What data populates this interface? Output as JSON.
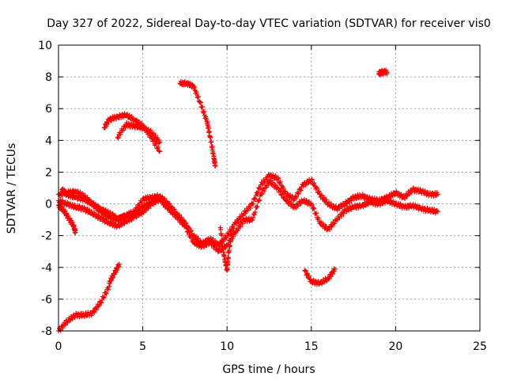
{
  "chart_data": {
    "type": "scatter",
    "title": "Day 327 of 2022, Sidereal Day-to-day VTEC variation (SDTVAR) for receiver vis0",
    "xlabel": "GPS time / hours",
    "ylabel": "SDTVAR / TECUs",
    "xlim": [
      0,
      25
    ],
    "ylim": [
      -8,
      10
    ],
    "xticks": [
      0,
      5,
      10,
      15,
      20,
      25
    ],
    "yticks": [
      -8,
      -6,
      -4,
      -2,
      0,
      2,
      4,
      6,
      8,
      10
    ],
    "grid": true,
    "marker": "+",
    "color": "#ff0000",
    "series": [
      {
        "x": [
          0.0,
          0.5,
          1.0,
          1.5,
          2.0,
          2.5,
          3.0,
          3.5,
          4.0,
          4.5,
          5.0,
          5.5,
          6.0,
          6.5,
          7.0,
          7.5,
          8.0,
          8.5,
          9.0,
          9.5,
          10.0,
          10.5,
          11.0,
          11.5,
          12.0,
          12.5,
          13.0,
          13.5,
          14.0,
          14.5,
          15.0,
          15.5,
          16.0,
          16.5,
          17.0,
          17.5,
          18.0,
          18.5,
          19.0,
          19.5,
          20.0,
          20.5,
          21.0,
          21.5,
          22.0,
          22.5
        ],
        "y": [
          0.6,
          0.7,
          0.8,
          0.5,
          0.0,
          -0.5,
          -0.8,
          -1.0,
          -0.7,
          -0.5,
          0.3,
          0.4,
          0.5,
          0.0,
          -0.6,
          -1.2,
          -2.0,
          -2.5,
          -2.2,
          -2.6,
          -2.0,
          -1.2,
          -0.6,
          0.0,
          1.2,
          1.8,
          1.6,
          0.6,
          0.3,
          1.2,
          1.5,
          0.6,
          0.0,
          -0.3,
          0.0,
          0.4,
          0.5,
          0.3,
          0.2,
          0.4,
          0.7,
          0.4,
          0.9,
          0.8,
          0.6,
          0.6
        ]
      },
      {
        "x": [
          0.0,
          0.5,
          1.0,
          1.5,
          2.0,
          2.5,
          3.0,
          3.5,
          4.0,
          4.5,
          5.0,
          5.5,
          6.0,
          6.5,
          7.0,
          7.5,
          8.0,
          8.5,
          9.0,
          9.5,
          10.0,
          10.5,
          11.0,
          11.5,
          12.0,
          12.5,
          13.0,
          13.5,
          14.0,
          14.5,
          15.0,
          15.5,
          16.0,
          16.5,
          17.0,
          17.5,
          18.0,
          18.5,
          19.0,
          19.5,
          20.0,
          20.5,
          21.0,
          21.5,
          22.0,
          22.5
        ],
        "y": [
          0.2,
          0.0,
          -0.2,
          -0.3,
          -0.6,
          -0.9,
          -1.2,
          -1.4,
          -1.1,
          -0.8,
          -0.5,
          0.0,
          0.3,
          -0.3,
          -0.8,
          -1.4,
          -2.4,
          -2.7,
          -2.4,
          -3.0,
          -2.6,
          -1.8,
          -1.0,
          -1.0,
          0.6,
          1.4,
          1.0,
          0.2,
          -0.2,
          0.2,
          0.0,
          -1.2,
          -1.6,
          -1.0,
          -0.4,
          -0.2,
          -0.1,
          0.1,
          0.0,
          0.2,
          0.0,
          -0.2,
          -0.1,
          -0.3,
          -0.4,
          -0.5
        ]
      },
      {
        "x": [
          0.0,
          0.3,
          0.6,
          0.9,
          1.0
        ],
        "y": [
          -0.1,
          -0.4,
          -0.9,
          -1.4,
          -1.8
        ]
      },
      {
        "x": [
          0.2,
          0.5,
          1.0,
          1.5,
          2.0,
          2.5,
          3.0,
          3.5,
          4.0,
          4.5,
          5.0,
          5.5,
          6.0
        ],
        "y": [
          0.9,
          0.6,
          0.4,
          0.3,
          0.0,
          -0.3,
          -0.6,
          -0.9,
          -0.8,
          -0.6,
          -0.2,
          0.1,
          0.4
        ]
      },
      {
        "x": [
          0.0,
          0.5,
          1.0,
          1.5,
          2.0,
          2.5,
          3.0
        ],
        "y": [
          -8.0,
          -7.4,
          -7.0,
          -7.0,
          -6.9,
          -6.2,
          -5.2
        ]
      },
      {
        "x": [
          3.0,
          3.3,
          3.6
        ],
        "y": [
          -5.0,
          -4.4,
          -3.8
        ]
      },
      {
        "x": [
          2.7,
          3.0,
          3.5,
          4.0,
          4.5,
          5.0,
          5.5,
          6.0
        ],
        "y": [
          4.8,
          5.3,
          5.5,
          5.6,
          5.3,
          4.9,
          4.2,
          3.3
        ]
      },
      {
        "x": [
          3.5,
          4.0,
          4.5,
          5.0,
          5.5,
          6.0
        ],
        "y": [
          4.2,
          5.0,
          4.9,
          4.8,
          4.5,
          3.9
        ]
      },
      {
        "x": [
          7.2,
          7.6,
          8.0,
          8.4,
          8.8,
          9.0,
          9.2,
          9.3
        ],
        "y": [
          7.6,
          7.6,
          7.4,
          6.4,
          5.2,
          4.2,
          3.0,
          2.4
        ]
      },
      {
        "x": [
          14.6,
          15.0,
          15.5,
          16.0,
          16.4
        ],
        "y": [
          -4.2,
          -4.9,
          -5.0,
          -4.7,
          -4.1
        ]
      },
      {
        "x": [
          19.0,
          19.2,
          19.5
        ],
        "y": [
          8.2,
          8.3,
          8.3
        ]
      },
      {
        "x": [
          9.6,
          9.8,
          10.0,
          10.1,
          10.3
        ],
        "y": [
          -1.5,
          -3.2,
          -4.2,
          -3.0,
          -1.6
        ]
      }
    ]
  }
}
